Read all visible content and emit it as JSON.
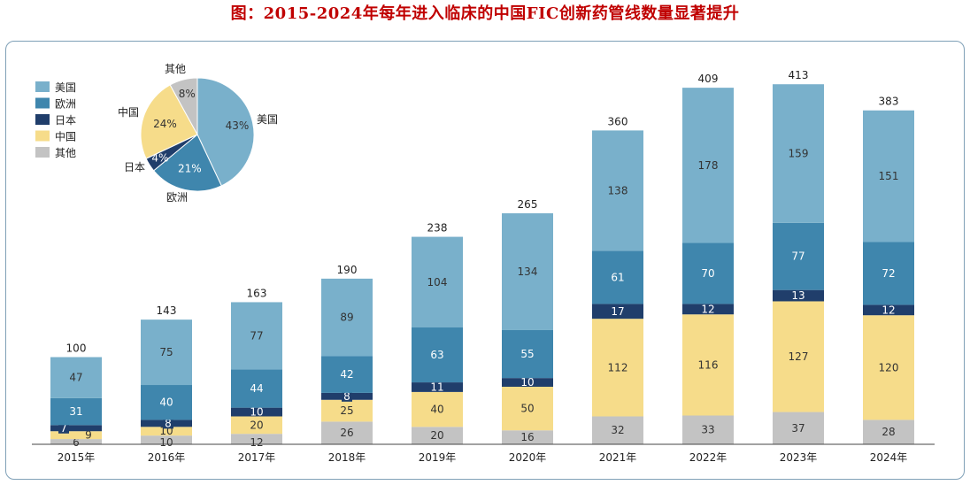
{
  "title": "图：2015-2024年每年进入临床的中国FIC创新药管线数量显著提升",
  "colors": {
    "美国": "#79b0cb",
    "欧洲": "#3f86ad",
    "日本": "#203e6b",
    "中国": "#f6dc8a",
    "其他": "#c3c3c3"
  },
  "chart_data": [
    {
      "type": "bar",
      "stacked": true,
      "title": "",
      "xlabel": "",
      "ylabel": "",
      "ylim": [
        0,
        450
      ],
      "categories": [
        "2015年",
        "2016年",
        "2017年",
        "2018年",
        "2019年",
        "2020年",
        "2021年",
        "2022年",
        "2023年",
        "2024年"
      ],
      "series": [
        {
          "name": "其他",
          "values": [
            6,
            10,
            12,
            26,
            20,
            16,
            32,
            33,
            37,
            28
          ]
        },
        {
          "name": "中国",
          "values": [
            9,
            10,
            20,
            25,
            40,
            50,
            112,
            116,
            127,
            120
          ]
        },
        {
          "name": "日本",
          "values": [
            7,
            8,
            10,
            8,
            11,
            10,
            17,
            12,
            13,
            12
          ]
        },
        {
          "name": "欧洲",
          "values": [
            31,
            40,
            44,
            42,
            63,
            55,
            61,
            70,
            77,
            72
          ]
        },
        {
          "name": "美国",
          "values": [
            47,
            75,
            77,
            89,
            104,
            134,
            138,
            178,
            159,
            151
          ]
        }
      ],
      "totals": [
        100,
        143,
        163,
        190,
        238,
        265,
        360,
        409,
        413,
        383
      ],
      "legend": [
        "美国",
        "欧洲",
        "日本",
        "中国",
        "其他"
      ],
      "legend_position": "top-left"
    },
    {
      "type": "pie",
      "title": "",
      "labels": [
        "美国",
        "欧洲",
        "日本",
        "中国",
        "其他"
      ],
      "values": [
        43,
        21,
        4,
        24,
        8
      ],
      "value_labels": [
        "43%",
        "21%",
        "4%",
        "24%",
        "8%"
      ]
    }
  ]
}
